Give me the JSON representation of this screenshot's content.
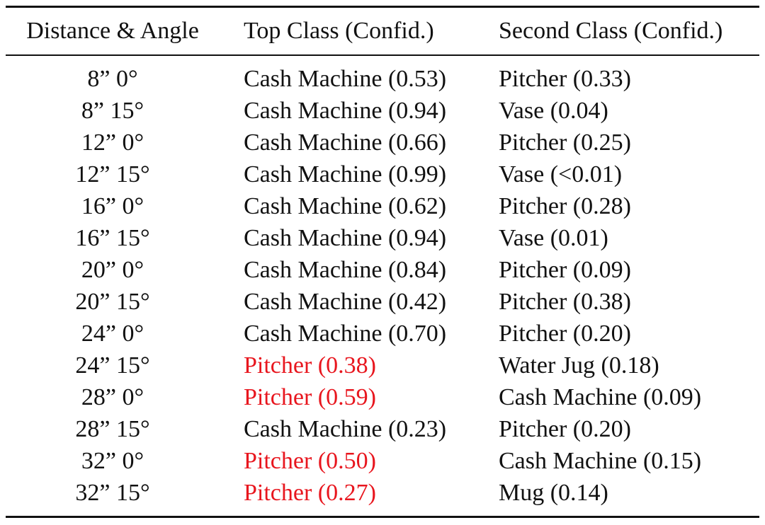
{
  "table": {
    "headers": [
      "Distance & Angle",
      "Top Class (Confid.)",
      "Second Class (Confid.)"
    ],
    "rows": [
      {
        "distance_angle": "8” 0°",
        "top_class": "Cash Machine (0.53)",
        "top_highlight": false,
        "second_class": "Pitcher (0.33)"
      },
      {
        "distance_angle": "8” 15°",
        "top_class": "Cash Machine (0.94)",
        "top_highlight": false,
        "second_class": "Vase (0.04)"
      },
      {
        "distance_angle": "12” 0°",
        "top_class": "Cash Machine (0.66)",
        "top_highlight": false,
        "second_class": "Pitcher (0.25)"
      },
      {
        "distance_angle": "12” 15°",
        "top_class": "Cash Machine (0.99)",
        "top_highlight": false,
        "second_class": "Vase (<0.01)"
      },
      {
        "distance_angle": "16” 0°",
        "top_class": "Cash Machine (0.62)",
        "top_highlight": false,
        "second_class": "Pitcher (0.28)"
      },
      {
        "distance_angle": "16” 15°",
        "top_class": "Cash Machine (0.94)",
        "top_highlight": false,
        "second_class": "Vase (0.01)"
      },
      {
        "distance_angle": "20” 0°",
        "top_class": "Cash Machine (0.84)",
        "top_highlight": false,
        "second_class": "Pitcher (0.09)"
      },
      {
        "distance_angle": "20” 15°",
        "top_class": "Cash Machine (0.42)",
        "top_highlight": false,
        "second_class": "Pitcher (0.38)"
      },
      {
        "distance_angle": "24” 0°",
        "top_class": "Cash Machine (0.70)",
        "top_highlight": false,
        "second_class": "Pitcher (0.20)"
      },
      {
        "distance_angle": "24” 15°",
        "top_class": "Pitcher (0.38)",
        "top_highlight": true,
        "second_class": "Water Jug (0.18)"
      },
      {
        "distance_angle": "28” 0°",
        "top_class": "Pitcher (0.59)",
        "top_highlight": true,
        "second_class": "Cash Machine (0.09)"
      },
      {
        "distance_angle": "28” 15°",
        "top_class": "Cash Machine (0.23)",
        "top_highlight": false,
        "second_class": "Pitcher (0.20)"
      },
      {
        "distance_angle": "32” 0°",
        "top_class": "Pitcher (0.50)",
        "top_highlight": true,
        "second_class": "Cash Machine (0.15)"
      },
      {
        "distance_angle": "32” 15°",
        "top_class": "Pitcher (0.27)",
        "top_highlight": true,
        "second_class": "Mug (0.14)"
      }
    ]
  },
  "colors": {
    "text": "#111111",
    "highlight": "#e8161e",
    "background": "#ffffff"
  }
}
